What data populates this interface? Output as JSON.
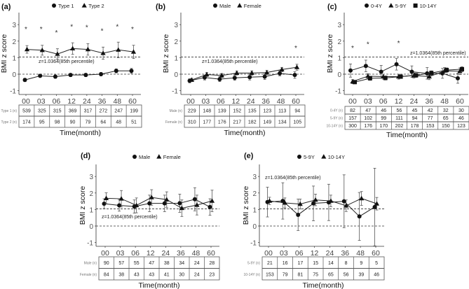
{
  "chart_data": [
    {
      "panel": "(a)",
      "type": "line",
      "ylabel": "BMI z score",
      "xlabel": "Time(month)",
      "ylim": [
        -1,
        3
      ],
      "yticks": [
        -1,
        0,
        1,
        2,
        3
      ],
      "categories": [
        "00",
        "03",
        "06",
        "12",
        "24",
        "36",
        "48",
        "60"
      ],
      "ref_line": 1.0364,
      "ref_label": "z=1.0364(85th percentile)",
      "series": [
        {
          "name": "Type 1",
          "marker": "circle",
          "values": [
            -0.35,
            -0.1,
            -0.15,
            -0.05,
            -0.05,
            0.0,
            0.2,
            0.2
          ],
          "err": [
            0.1,
            0.08,
            0.1,
            0.1,
            0.1,
            0.1,
            0.12,
            0.15
          ]
        },
        {
          "name": "Type 2",
          "marker": "triangle",
          "values": [
            1.5,
            1.45,
            1.22,
            1.55,
            1.5,
            1.27,
            1.47,
            1.35
          ],
          "err": [
            0.23,
            0.3,
            0.32,
            0.35,
            0.35,
            0.37,
            0.47,
            0.4
          ]
        }
      ],
      "stars": [
        2.75,
        2.75,
        2.55,
        2.9,
        2.85,
        2.65,
        2.9,
        2.75
      ],
      "table": {
        "rows": [
          {
            "label": "Type 1 (n)",
            "values": [
              539,
              325,
              315,
              369,
              317,
              272,
              247,
              199
            ]
          },
          {
            "label": "Type 2 (n)",
            "values": [
              174,
              95,
              98,
              90,
              79,
              64,
              48,
              51
            ]
          }
        ]
      }
    },
    {
      "panel": "(b)",
      "type": "line",
      "ylabel": "BMI z score",
      "xlabel": "Time(month)",
      "ylim": [
        -1,
        3
      ],
      "yticks": [
        -1,
        0,
        1,
        2,
        3
      ],
      "categories": [
        "00",
        "03",
        "06",
        "12",
        "24",
        "36",
        "48",
        "60"
      ],
      "ref_line": 1.0364,
      "ref_label": "z=1.0364(85th percentile)",
      "series": [
        {
          "name": "Male",
          "marker": "circle",
          "values": [
            -0.4,
            -0.2,
            -0.3,
            -0.22,
            -0.18,
            -0.15,
            0.05,
            -0.05
          ],
          "err": [
            0.12,
            0.15,
            0.15,
            0.15,
            0.17,
            0.17,
            0.15,
            0.2
          ]
        },
        {
          "name": "Female",
          "marker": "triangle",
          "values": [
            -0.35,
            -0.02,
            -0.08,
            0.07,
            0.07,
            0.1,
            0.28,
            0.42
          ],
          "err": [
            0.1,
            0.12,
            0.12,
            0.12,
            0.13,
            0.13,
            0.13,
            0.18
          ]
        }
      ],
      "stars": [
        null,
        null,
        null,
        null,
        null,
        null,
        null,
        1.6
      ],
      "table": {
        "rows": [
          {
            "label": "Male (n)",
            "values": [
              229,
              148,
              139,
              152,
              135,
              123,
              113,
              94
            ]
          },
          {
            "label": "Female (n)",
            "values": [
              310,
              177,
              176,
              217,
              182,
              149,
              134,
              105
            ]
          }
        ]
      }
    },
    {
      "panel": "(c)",
      "type": "line",
      "ylabel": "BMI z score",
      "xlabel": "Time(month)",
      "ylim": [
        -1,
        3
      ],
      "yticks": [
        -1,
        0,
        1,
        2,
        3
      ],
      "categories": [
        "00",
        "03",
        "06",
        "12",
        "24",
        "36",
        "48",
        "60"
      ],
      "ref_line": 1.0364,
      "ref_label": "z=1.0364(85th percentile)",
      "series": [
        {
          "name": "0-4Y",
          "marker": "circle",
          "values": [
            0.22,
            0.5,
            0.15,
            0.6,
            0.15,
            0.05,
            0.05,
            -0.25
          ],
          "err": [
            0.4,
            0.35,
            0.38,
            0.35,
            0.35,
            0.35,
            0.3,
            0.3
          ]
        },
        {
          "name": "5-9Y",
          "marker": "triangle",
          "values": [
            -0.45,
            -0.12,
            -0.15,
            -0.15,
            -0.08,
            -0.15,
            0.2,
            0.18
          ],
          "err": [
            0.12,
            0.15,
            0.15,
            0.15,
            0.15,
            0.18,
            0.2,
            0.2
          ]
        },
        {
          "name": "10-14Y",
          "marker": "square",
          "values": [
            -0.48,
            -0.25,
            -0.23,
            -0.15,
            -0.07,
            0.07,
            0.25,
            0.3
          ],
          "err": [
            0.1,
            0.12,
            0.12,
            0.1,
            0.12,
            0.13,
            0.13,
            0.15
          ]
        }
      ],
      "stars": [
        1.6,
        1.85,
        null,
        1.9,
        null,
        null,
        null,
        null
      ],
      "table": {
        "rows": [
          {
            "label": "0-4Y (n)",
            "values": [
              82,
              47,
              46,
              56,
              45,
              42,
              32,
              30
            ]
          },
          {
            "label": "5-9Y (n)",
            "values": [
              157,
              102,
              99,
              111,
              94,
              77,
              65,
              46
            ]
          },
          {
            "label": "10-14Y (n)",
            "values": [
              300,
              176,
              170,
              202,
              178,
              153,
              150,
              123
            ]
          }
        ]
      }
    },
    {
      "panel": "(d)",
      "type": "line",
      "ylabel": "BMI z score",
      "xlabel": "Time(month)",
      "ylim": [
        -1,
        3
      ],
      "yticks": [
        -1,
        0,
        1,
        2,
        3
      ],
      "categories": [
        "00",
        "03",
        "06",
        "12",
        "24",
        "36",
        "48",
        "60"
      ],
      "ref_line": 1.0364,
      "ref_label": "z=1.0364(85th percentile)",
      "series": [
        {
          "name": "Male",
          "marker": "circle",
          "values": [
            1.35,
            1.25,
            1.18,
            1.37,
            1.37,
            1.38,
            1.62,
            1.15
          ],
          "err": [
            0.3,
            0.35,
            0.4,
            0.5,
            0.5,
            0.55,
            0.7,
            0.5
          ]
        },
        {
          "name": "Female",
          "marker": "triangle",
          "values": [
            1.68,
            1.65,
            1.25,
            1.73,
            1.6,
            1.08,
            1.27,
            1.52
          ],
          "err": [
            0.33,
            0.5,
            0.45,
            0.47,
            0.47,
            0.5,
            0.6,
            0.65
          ]
        }
      ],
      "stars": [
        null,
        null,
        null,
        null,
        null,
        null,
        null,
        null
      ],
      "table": {
        "rows": [
          {
            "label": "Male (n)",
            "values": [
              90,
              57,
              55,
              47,
              38,
              34,
              24,
              28
            ]
          },
          {
            "label": "Female (n)",
            "values": [
              84,
              38,
              43,
              43,
              41,
              30,
              24,
              23
            ]
          }
        ]
      }
    },
    {
      "panel": "(e)",
      "type": "line",
      "ylabel": "BMI z score",
      "xlabel": "Time(month)",
      "ylim": [
        -1,
        3
      ],
      "yticks": [
        -1,
        0,
        1,
        2,
        3
      ],
      "categories": [
        "00",
        "03",
        "06",
        "12",
        "24",
        "36",
        "48",
        "60"
      ],
      "ref_line": 1.0364,
      "ref_label": "z=1.0364(85th percentile)",
      "series": [
        {
          "name": "5-9Y",
          "marker": "circle",
          "values": [
            1.45,
            1.52,
            0.68,
            1.37,
            1.43,
            1.5,
            0.58,
            1.15
          ],
          "err": [
            0.9,
            1.1,
            0.95,
            1.05,
            1.1,
            1.6,
            1.45,
            2.35
          ]
        },
        {
          "name": "10-14Y",
          "marker": "triangle",
          "values": [
            1.52,
            1.4,
            1.33,
            1.58,
            1.52,
            1.23,
            1.67,
            1.35
          ],
          "err": [
            0.22,
            0.3,
            0.3,
            0.35,
            0.35,
            0.35,
            0.42,
            0.38
          ]
        }
      ],
      "stars": [
        null,
        null,
        null,
        null,
        null,
        null,
        null,
        null
      ],
      "table": {
        "rows": [
          {
            "label": "5-9Y (n)",
            "values": [
              21,
              16,
              17,
              15,
              14,
              8,
              9,
              5
            ]
          },
          {
            "label": "10-14Y (n)",
            "values": [
              153,
              79,
              81,
              75,
              65,
              56,
              39,
              46
            ]
          }
        ]
      }
    }
  ]
}
